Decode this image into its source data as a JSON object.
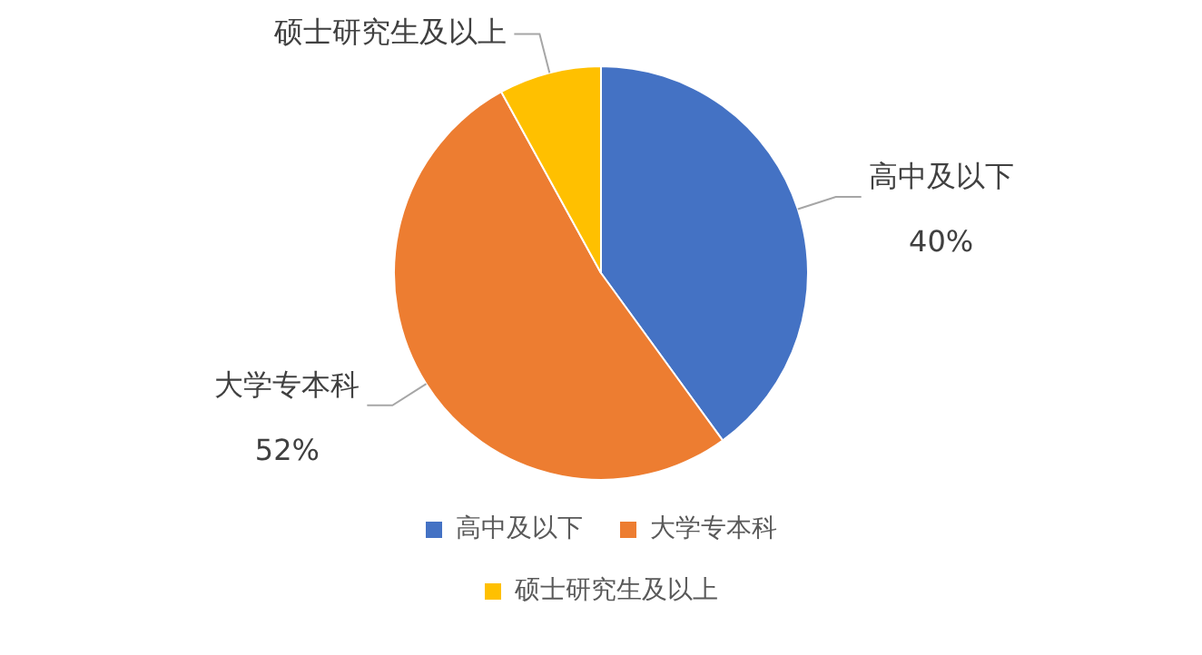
{
  "chart_data": {
    "type": "pie",
    "categories": [
      "高中及以下",
      "大学专本科",
      "硕士研究生及以上"
    ],
    "values": [
      40,
      52,
      8
    ],
    "colors": [
      "#4472c4",
      "#ed7d31",
      "#ffc000"
    ],
    "value_labels": [
      "40%",
      "52%",
      null
    ],
    "legend": "bottom"
  }
}
